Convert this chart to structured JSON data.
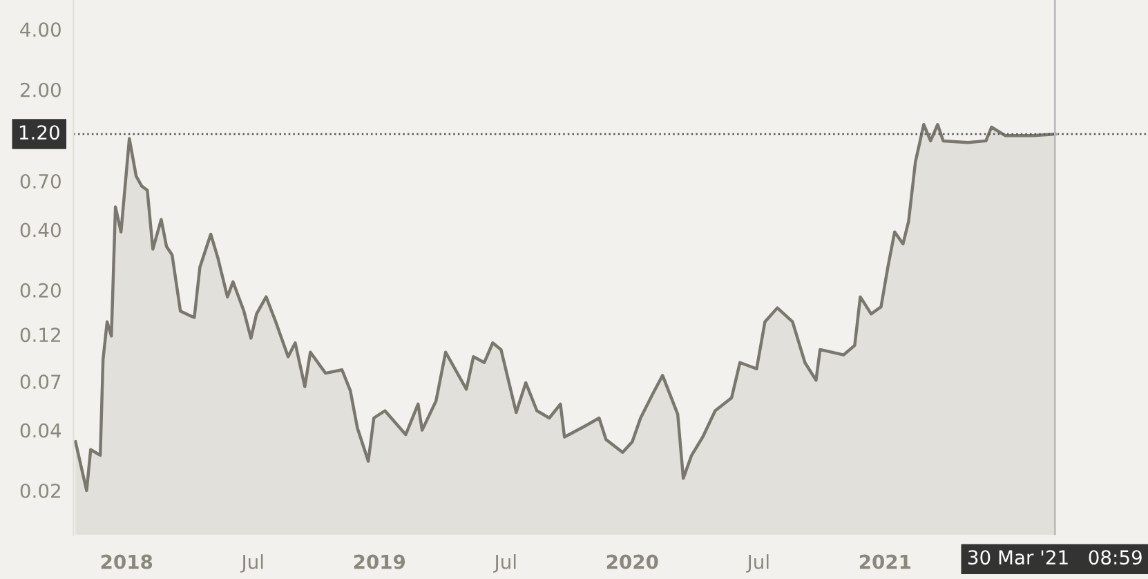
{
  "chart_data": {
    "type": "area",
    "log": "y",
    "grid": false,
    "x": [
      2017.798,
      2017.842,
      2017.858,
      2017.896,
      2017.907,
      2017.923,
      2017.94,
      2017.956,
      2017.978,
      2018.011,
      2018.038,
      2018.06,
      2018.082,
      2018.104,
      2018.137,
      2018.158,
      2018.18,
      2018.213,
      2018.246,
      2018.268,
      2018.29,
      2018.333,
      2018.361,
      2018.399,
      2018.421,
      2018.464,
      2018.492,
      2018.514,
      2018.552,
      2018.59,
      2018.639,
      2018.667,
      2018.705,
      2018.727,
      2018.787,
      2018.852,
      2018.885,
      2018.913,
      2018.956,
      2018.978,
      2019.022,
      2019.104,
      2019.153,
      2019.169,
      2019.224,
      2019.262,
      2019.344,
      2019.372,
      2019.415,
      2019.448,
      2019.481,
      2019.541,
      2019.579,
      2019.623,
      2019.672,
      2019.716,
      2019.732,
      2019.814,
      2019.869,
      2019.896,
      2019.962,
      2020.0,
      2020.033,
      2020.082,
      2020.12,
      2020.18,
      2020.202,
      2020.235,
      2020.279,
      2020.328,
      2020.393,
      2020.426,
      2020.492,
      2020.525,
      2020.574,
      2020.634,
      2020.683,
      2020.727,
      2020.743,
      2020.836,
      2020.88,
      2020.902,
      2020.945,
      2020.984,
      2021.011,
      2021.038,
      2021.071,
      2021.093,
      2021.12,
      2021.153,
      2021.18,
      2021.208,
      2021.23,
      2021.328,
      2021.399,
      2021.421,
      2021.475,
      2021.585,
      2021.672
    ],
    "annotations": [
      "30 Mar '21   08:59"
    ],
    "series": [
      {
        "color": "#7a776e",
        "values": [
          0.035,
          0.02,
          0.032,
          0.03,
          0.09,
          0.139,
          0.118,
          0.52,
          0.39,
          1.14,
          0.74,
          0.66,
          0.63,
          0.32,
          0.45,
          0.33,
          0.3,
          0.157,
          0.15,
          0.146,
          0.26,
          0.38,
          0.29,
          0.185,
          0.22,
          0.157,
          0.115,
          0.152,
          0.185,
          0.139,
          0.093,
          0.109,
          0.066,
          0.098,
          0.077,
          0.08,
          0.063,
          0.041,
          0.028,
          0.046,
          0.05,
          0.038,
          0.054,
          0.04,
          0.056,
          0.098,
          0.064,
          0.093,
          0.087,
          0.109,
          0.101,
          0.049,
          0.069,
          0.05,
          0.046,
          0.054,
          0.037,
          0.042,
          0.046,
          0.036,
          0.031,
          0.035,
          0.046,
          0.061,
          0.075,
          0.048,
          0.023,
          0.03,
          0.037,
          0.05,
          0.058,
          0.087,
          0.081,
          0.139,
          0.163,
          0.139,
          0.087,
          0.071,
          0.101,
          0.095,
          0.106,
          0.185,
          0.152,
          0.165,
          0.26,
          0.39,
          0.34,
          0.44,
          0.87,
          1.34,
          1.11,
          1.34,
          1.11,
          1.09,
          1.11,
          1.3,
          1.18,
          1.18,
          1.2
        ]
      }
    ],
    "xlim": [
      2017.79,
      2022.04
    ],
    "xticks": [
      {
        "value": 2018,
        "label": "2018"
      },
      {
        "value": 2018.5,
        "label": "Jul"
      },
      {
        "value": 2019,
        "label": "2019"
      },
      {
        "value": 2019.5,
        "label": "Jul"
      },
      {
        "value": 2020,
        "label": "2020"
      },
      {
        "value": 2020.5,
        "label": "Jul"
      },
      {
        "value": 2021,
        "label": "2021"
      }
    ],
    "ylim": [
      0.012,
      5.6
    ],
    "yticks": [
      {
        "value": 0.02,
        "label": "0.02"
      },
      {
        "value": 0.04,
        "label": "0.04"
      },
      {
        "value": 0.07,
        "label": "0.07"
      },
      {
        "value": 0.12,
        "label": "0.12"
      },
      {
        "value": 0.2,
        "label": "0.20"
      },
      {
        "value": 0.4,
        "label": "0.40"
      },
      {
        "value": 0.7,
        "label": "0.70"
      },
      {
        "value": 2,
        "label": "2.00"
      },
      {
        "value": 4,
        "label": "4.00"
      }
    ],
    "ref_lines": [
      {
        "axis": "y",
        "value": 1.2,
        "label": "1.20",
        "color": "#555555",
        "line_style": "dotted"
      },
      {
        "axis": "x",
        "value": 2021.672,
        "color": "#bbbbbb",
        "line_style": "solid"
      }
    ]
  }
}
